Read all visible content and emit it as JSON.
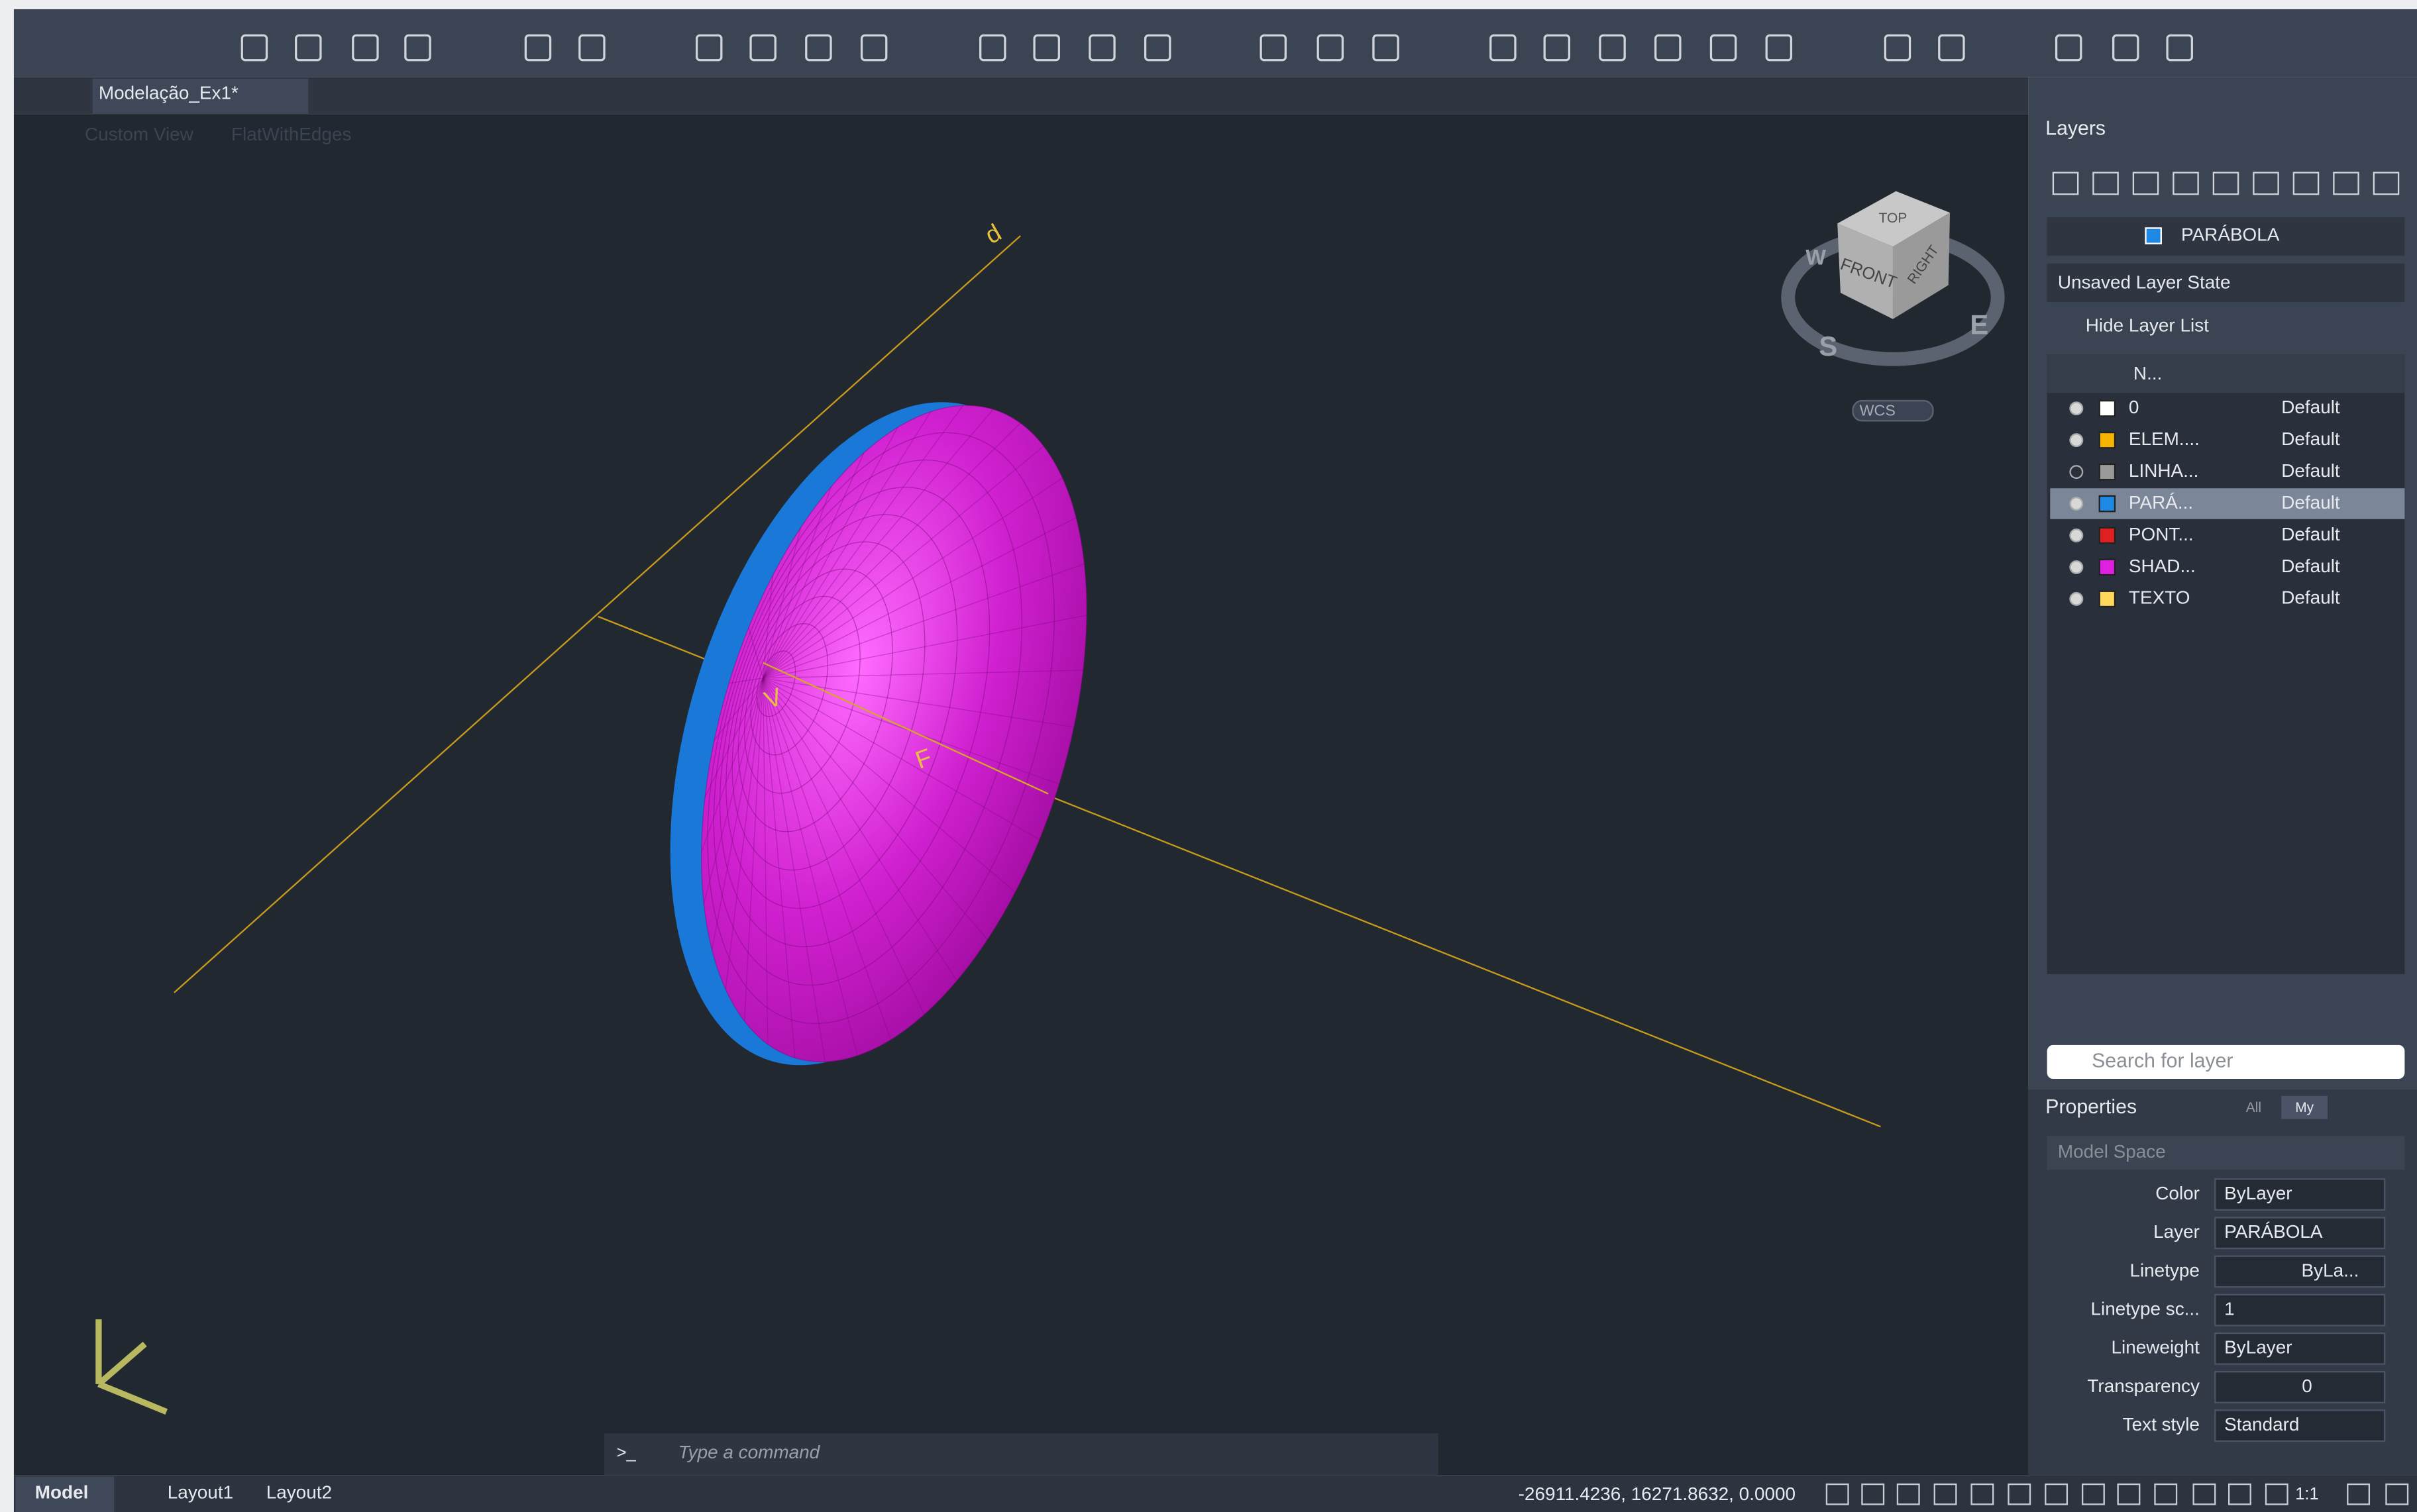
{
  "document_tab": "Modelação_Ex1*",
  "viewport": {
    "view_name": "Custom View",
    "visual_style": "FlatWithEdges",
    "labels": [
      "d",
      "V",
      "F"
    ],
    "viewcube": {
      "top": "TOP",
      "front": "FRONT",
      "right": "RIGHT",
      "compass": [
        "W",
        "S",
        "E"
      ],
      "ucs": "WCS"
    }
  },
  "command_line": {
    "prompt": ">_",
    "placeholder": "Type a command"
  },
  "layers_panel": {
    "title": "Layers",
    "current_layer": "PARÁBOLA",
    "layer_state": "Unsaved Layer State",
    "toggle": "Hide Layer List",
    "name_column": "N...",
    "layers": [
      {
        "name": "0",
        "color": "#ffffff",
        "linetype": "Default"
      },
      {
        "name": "ELEM....",
        "color": "#f5b400",
        "linetype": "Default"
      },
      {
        "name": "LINHA...",
        "color": "#9a9a9a",
        "linetype": "Default"
      },
      {
        "name": "PARÁ...",
        "color": "#1e88e5",
        "linetype": "Default"
      },
      {
        "name": "PONT...",
        "color": "#e02020",
        "linetype": "Default"
      },
      {
        "name": "SHAD...",
        "color": "#e020e0",
        "linetype": "Default"
      },
      {
        "name": "TEXTO",
        "color": "#ffd75a",
        "linetype": "Default"
      }
    ],
    "search_placeholder": "Search for layer"
  },
  "properties_panel": {
    "title": "Properties",
    "filters": [
      "All",
      "My"
    ],
    "space": "Model Space",
    "rows": [
      {
        "label": "Color",
        "value": "ByLayer"
      },
      {
        "label": "Layer",
        "value": "PARÁBOLA"
      },
      {
        "label": "Linetype",
        "value": "ByLa..."
      },
      {
        "label": "Linetype sc...",
        "value": "1"
      },
      {
        "label": "Lineweight",
        "value": "ByLayer"
      },
      {
        "label": "Transparency",
        "value": "0"
      },
      {
        "label": "Text style",
        "value": "Standard"
      }
    ]
  },
  "status_bar": {
    "tabs": [
      "Model",
      "Layout1",
      "Layout2"
    ],
    "coordinates": "-26911.4236, 16271.8632, 0.0000",
    "scale": "1:1"
  }
}
